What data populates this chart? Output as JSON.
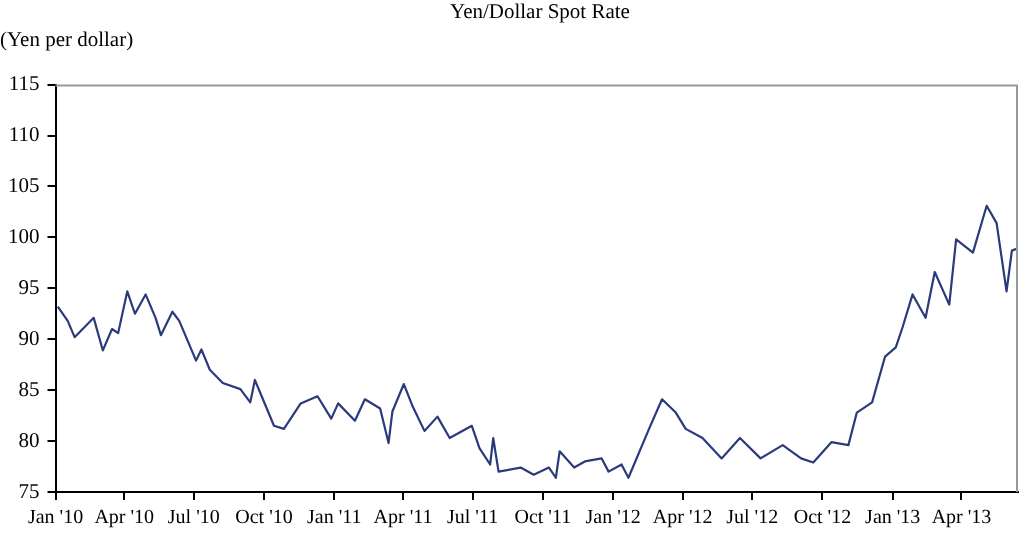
{
  "chart_data": {
    "type": "line",
    "title": "Yen/Dollar Spot Rate",
    "ylabel": "(Yen per dollar)",
    "x": [
      "2010-01-04",
      "2010-01-17",
      "2010-01-26",
      "2010-02-20",
      "2010-03-04",
      "2010-03-16",
      "2010-03-24",
      "2010-04-05",
      "2010-04-15",
      "2010-04-29",
      "2010-05-12",
      "2010-05-19",
      "2010-06-03",
      "2010-06-12",
      "2010-07-04",
      "2010-07-11",
      "2010-07-22",
      "2010-08-08",
      "2010-08-31",
      "2010-09-13",
      "2010-09-19",
      "2010-10-14",
      "2010-10-27",
      "2010-11-18",
      "2010-12-10",
      "2010-12-28",
      "2011-01-06",
      "2011-01-28",
      "2011-02-10",
      "2011-03-02",
      "2011-03-13",
      "2011-03-18",
      "2011-04-02",
      "2011-04-13",
      "2011-04-29",
      "2011-05-16",
      "2011-06-01",
      "2011-06-30",
      "2011-07-10",
      "2011-07-24",
      "2011-07-28",
      "2011-08-04",
      "2011-09-02",
      "2011-09-19",
      "2011-10-09",
      "2011-10-18",
      "2011-10-23",
      "2011-11-11",
      "2011-11-25",
      "2011-12-17",
      "2011-12-26",
      "2012-01-12",
      "2012-01-21",
      "2012-02-17",
      "2012-03-05",
      "2012-03-23",
      "2012-04-05",
      "2012-04-27",
      "2012-05-22",
      "2012-06-15",
      "2012-07-12",
      "2012-08-10",
      "2012-09-03",
      "2012-09-19",
      "2012-10-13",
      "2012-11-04",
      "2012-11-15",
      "2012-12-05",
      "2012-12-22",
      "2013-01-05",
      "2013-01-14",
      "2013-01-27",
      "2013-02-13",
      "2013-02-25",
      "2013-03-16",
      "2013-03-25",
      "2013-04-16",
      "2013-05-04",
      "2013-05-17",
      "2013-05-30",
      "2013-06-06",
      "2013-06-13"
    ],
    "series": [
      {
        "color": "#2b3a7a",
        "values": [
          93.2,
          91.8,
          90.2,
          92.1,
          88.9,
          91.0,
          90.6,
          94.7,
          92.5,
          94.4,
          92.1,
          90.4,
          92.7,
          91.8,
          87.9,
          89.0,
          87.0,
          85.7,
          85.1,
          83.8,
          86.0,
          81.5,
          81.2,
          83.7,
          84.4,
          82.2,
          83.7,
          82.0,
          84.1,
          83.2,
          79.8,
          82.9,
          85.6,
          83.5,
          81.0,
          82.4,
          80.3,
          81.5,
          79.3,
          77.7,
          80.3,
          77.0,
          77.4,
          76.7,
          77.4,
          76.4,
          79.0,
          77.4,
          78.0,
          78.3,
          77.0,
          77.7,
          76.4,
          81.2,
          84.1,
          82.8,
          81.2,
          80.3,
          78.3,
          80.3,
          78.3,
          79.6,
          78.3,
          77.9,
          79.9,
          79.6,
          82.8,
          83.8,
          88.3,
          89.2,
          91.2,
          94.4,
          92.1,
          96.6,
          93.4,
          99.8,
          98.5,
          103.1,
          101.4,
          94.7,
          98.7,
          98.9
        ]
      }
    ],
    "xlim": [
      "2010-01-01",
      "2013-06-14"
    ],
    "xticks": [
      {
        "value": "2010-01-01",
        "label": "Jan '10"
      },
      {
        "value": "2010-04-01",
        "label": "Apr '10"
      },
      {
        "value": "2010-07-01",
        "label": "Jul '10"
      },
      {
        "value": "2010-10-01",
        "label": "Oct '10"
      },
      {
        "value": "2011-01-01",
        "label": "Jan '11"
      },
      {
        "value": "2011-04-01",
        "label": "Apr '11"
      },
      {
        "value": "2011-07-01",
        "label": "Jul '11"
      },
      {
        "value": "2011-10-01",
        "label": "Oct '11"
      },
      {
        "value": "2012-01-01",
        "label": "Jan '12"
      },
      {
        "value": "2012-04-01",
        "label": "Apr '12"
      },
      {
        "value": "2012-07-01",
        "label": "Jul '12"
      },
      {
        "value": "2012-10-01",
        "label": "Oct '12"
      },
      {
        "value": "2013-01-01",
        "label": "Jan '13"
      },
      {
        "value": "2013-04-01",
        "label": "Apr '13"
      }
    ],
    "ylim": [
      75,
      115
    ],
    "yticks": [
      75,
      80,
      85,
      90,
      95,
      100,
      105,
      110,
      115
    ],
    "grid": false,
    "legend": false,
    "marker": "none",
    "line_style": "solid"
  }
}
